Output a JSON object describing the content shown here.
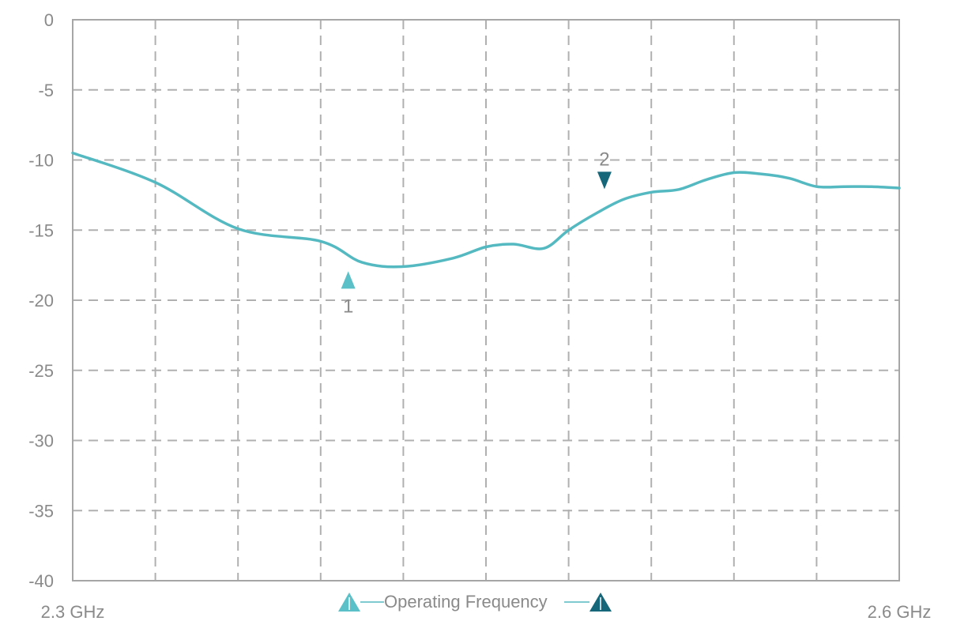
{
  "chart_data": {
    "type": "line",
    "title": "",
    "xlabel": "",
    "ylabel": "",
    "x_range_labels": {
      "start": "2.3 GHz",
      "end": "2.6 GHz"
    },
    "xlim": [
      2.3,
      2.6
    ],
    "ylim": [
      -40,
      0
    ],
    "y_ticks": [
      0,
      -5,
      -10,
      -15,
      -20,
      -25,
      -30,
      -35,
      -40
    ],
    "y_tick_labels": [
      "0",
      "-5",
      "-10",
      "-15",
      "-20",
      "-25",
      "-30",
      "-35",
      "-40"
    ],
    "grid": true,
    "series": [
      {
        "color": "#55b9c1",
        "x": [
          2.3,
          2.33,
          2.36,
          2.39,
          2.405,
          2.42,
          2.438,
          2.45,
          2.46,
          2.471,
          2.48,
          2.49,
          2.5,
          2.51,
          2.52,
          2.53,
          2.54,
          2.55,
          2.56,
          2.57,
          2.58,
          2.59,
          2.6
        ],
        "values": [
          -9.5,
          -11.6,
          -14.9,
          -15.8,
          -17.3,
          -17.6,
          -17.0,
          -16.2,
          -16.0,
          -16.3,
          -15.0,
          -13.8,
          -12.8,
          -12.3,
          -12.1,
          -11.4,
          -10.9,
          -11.0,
          -11.3,
          -11.9,
          -11.9,
          -11.9,
          -12.0
        ]
      }
    ],
    "markers": [
      {
        "label": "1",
        "x": 2.4,
        "y": -17.6,
        "color": "#5bc0c7",
        "direction": "up"
      },
      {
        "label": "2",
        "x": 2.493,
        "y": -12.3,
        "color": "#16677a",
        "direction": "down"
      }
    ],
    "legend": {
      "label": "Operating Frequency",
      "start_marker_color": "#5bc0c7",
      "end_marker_color": "#16677a",
      "placement": "bottom-center"
    },
    "colors": {
      "frame": "#a6a6a6",
      "grid": "#b0b0b0",
      "text": "#8a8a8a"
    }
  }
}
